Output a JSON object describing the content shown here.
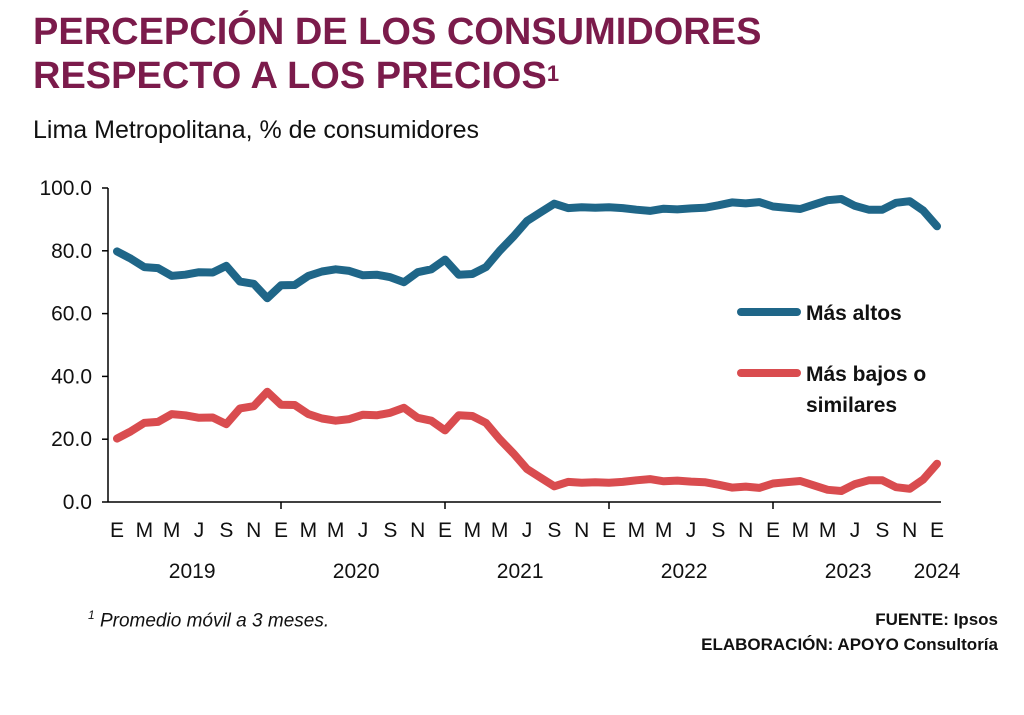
{
  "header": {
    "title_line1": "PERCEPCIÓN DE LOS CONSUMIDORES",
    "title_line2": "RESPECTO A LOS PRECIOS",
    "title_sup": "1",
    "subtitle": "Lima Metropolitana, % de consumidores"
  },
  "footer": {
    "footnote_sup": "1",
    "footnote": "Promedio móvil a 3 meses.",
    "source": "FUENTE: Ipsos",
    "elaboration": "ELABORACIÓN: APOYO Consultoría"
  },
  "chart_data": {
    "type": "line",
    "ylim": [
      0,
      100
    ],
    "yticks": [
      "100.0",
      "80.0",
      "60.0",
      "40.0",
      "20.0",
      "0.0"
    ],
    "x_month_labels": [
      "E",
      "M",
      "M",
      "J",
      "S",
      "N",
      "E",
      "M",
      "M",
      "J",
      "S",
      "N",
      "E",
      "M",
      "M",
      "J",
      "S",
      "N",
      "E",
      "M",
      "M",
      "J",
      "S",
      "N",
      "E",
      "M",
      "M",
      "J",
      "S",
      "N",
      "E"
    ],
    "year_labels": [
      "2019",
      "2020",
      "2021",
      "2022",
      "2023",
      "2024"
    ],
    "x": [
      "Ene-19",
      "Feb-19",
      "Mar-19",
      "Abr-19",
      "May-19",
      "Jun-19",
      "Jul-19",
      "Ago-19",
      "Set-19",
      "Oct-19",
      "Nov-19",
      "Dic-19",
      "Ene-20",
      "Feb-20",
      "Mar-20",
      "Abr-20",
      "May-20",
      "Jun-20",
      "Jul-20",
      "Ago-20",
      "Set-20",
      "Oct-20",
      "Nov-20",
      "Dic-20",
      "Ene-21",
      "Feb-21",
      "Mar-21",
      "Abr-21",
      "May-21",
      "Jun-21",
      "Jul-21",
      "Ago-21",
      "Set-21",
      "Oct-21",
      "Nov-21",
      "Dic-21",
      "Ene-22",
      "Feb-22",
      "Mar-22",
      "Abr-22",
      "May-22",
      "Jun-22",
      "Jul-22",
      "Ago-22",
      "Set-22",
      "Oct-22",
      "Nov-22",
      "Dic-22",
      "Ene-23",
      "Feb-23",
      "Mar-23",
      "Abr-23",
      "May-23",
      "Jun-23",
      "Jul-23",
      "Ago-23",
      "Set-23",
      "Oct-23",
      "Nov-23",
      "Dic-23",
      "Ene-24"
    ],
    "series": [
      {
        "name": "Más altos",
        "color": "#1f6688",
        "values": [
          79.8,
          77.5,
          74.8,
          74.5,
          72.0,
          72.4,
          73.2,
          73.1,
          75.2,
          70.2,
          69.5,
          64.9,
          69.0,
          69.1,
          72.0,
          73.4,
          74.1,
          73.6,
          72.2,
          72.4,
          71.6,
          70.0,
          73.2,
          74.1,
          77.2,
          72.4,
          72.6,
          74.8,
          80.0,
          84.5,
          89.5,
          92.3,
          95.0,
          93.6,
          93.9,
          93.7,
          93.9,
          93.6,
          93.1,
          92.7,
          93.4,
          93.2,
          93.5,
          93.7,
          94.5,
          95.4,
          95.1,
          95.5,
          94.1,
          93.7,
          93.3,
          94.7,
          96.1,
          96.5,
          94.3,
          93.1,
          93.1,
          95.3,
          95.8,
          92.8,
          87.8
        ]
      },
      {
        "name": "Más bajos o similares",
        "color": "#d94c4f",
        "values": [
          20.2,
          22.5,
          25.2,
          25.5,
          28.0,
          27.6,
          26.8,
          26.9,
          24.8,
          29.8,
          30.5,
          35.1,
          31.0,
          30.9,
          28.0,
          26.6,
          25.9,
          26.4,
          27.8,
          27.6,
          28.4,
          30.0,
          26.8,
          25.9,
          22.8,
          27.6,
          27.4,
          25.2,
          20.0,
          15.5,
          10.5,
          7.7,
          5.0,
          6.4,
          6.1,
          6.3,
          6.1,
          6.4,
          6.9,
          7.3,
          6.6,
          6.8,
          6.5,
          6.3,
          5.5,
          4.6,
          4.9,
          4.5,
          5.9,
          6.3,
          6.7,
          5.3,
          3.9,
          3.5,
          5.7,
          6.9,
          6.9,
          4.7,
          4.2,
          7.2,
          12.2
        ]
      }
    ],
    "legend": [
      {
        "lines": [
          "Más altos"
        ],
        "color": "#1f6688"
      },
      {
        "lines": [
          "Más bajos o",
          "similares"
        ],
        "color": "#d94c4f"
      }
    ],
    "legend_position": "right"
  }
}
